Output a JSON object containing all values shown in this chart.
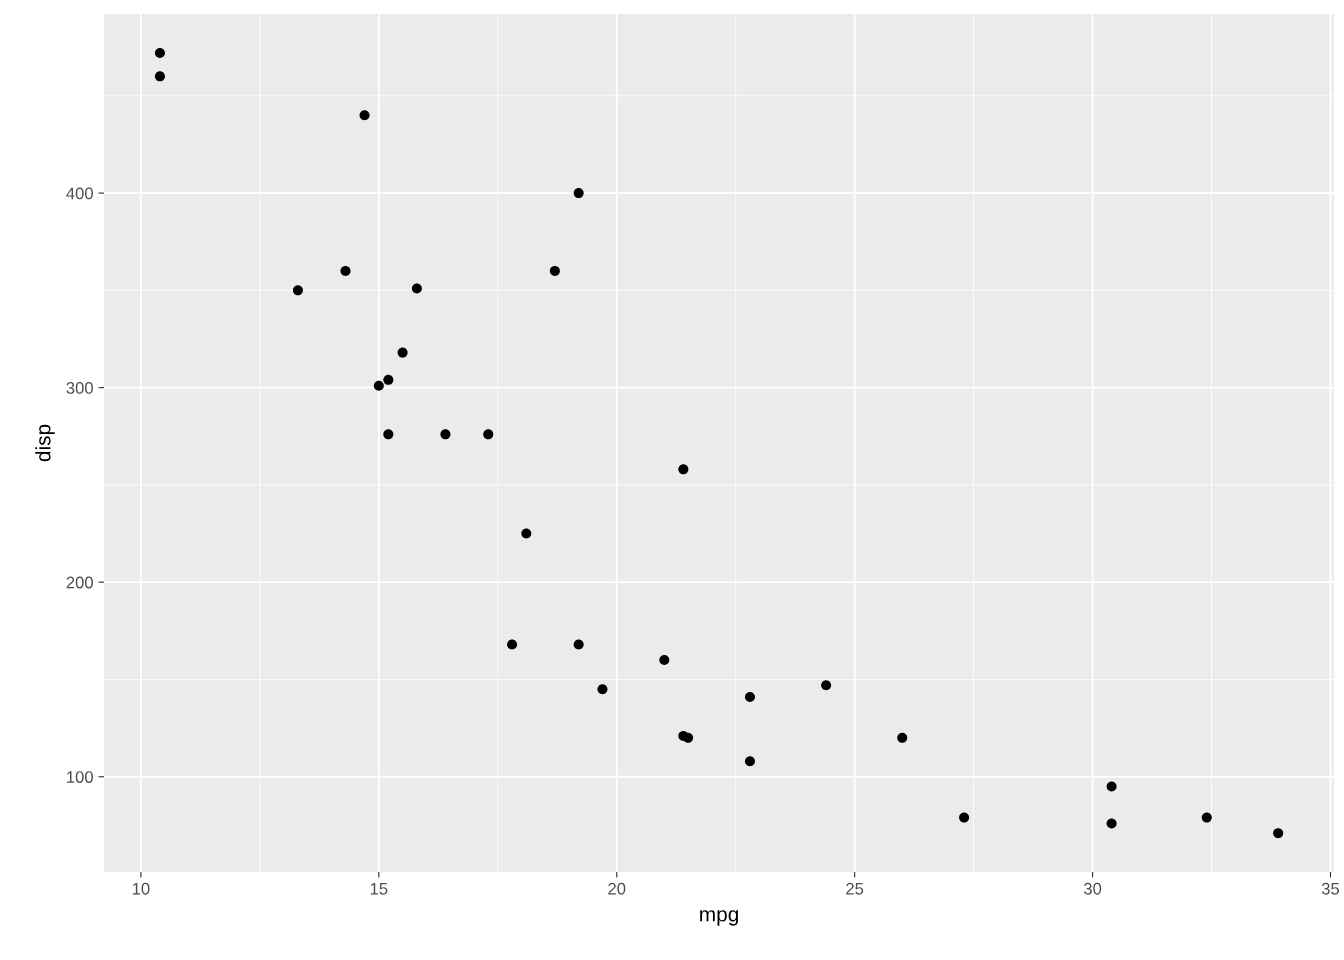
{
  "chart_data": {
    "type": "scatter",
    "xlabel": "mpg",
    "ylabel": "disp",
    "x": [
      21.0,
      22.8,
      21.4,
      18.7,
      18.1,
      14.3,
      24.4,
      22.8,
      19.2,
      17.8,
      16.4,
      17.3,
      15.2,
      10.4,
      10.4,
      14.7,
      32.4,
      30.4,
      33.9,
      21.5,
      15.5,
      15.2,
      13.3,
      19.2,
      27.3,
      26.0,
      30.4,
      15.8,
      19.7,
      15.0,
      21.4
    ],
    "series": [
      {
        "color": "#000000",
        "values": [
          160,
          108,
          258,
          360,
          225,
          360,
          147,
          141,
          168,
          168,
          276,
          276,
          276,
          472,
          460,
          440,
          79,
          76,
          71,
          120,
          318,
          304,
          350,
          400,
          79,
          120,
          95,
          351,
          145,
          301,
          121
        ]
      }
    ],
    "xlim": [
      9.225,
      35.075
    ],
    "ylim": [
      51.055,
      492.045
    ],
    "xticks": [
      10,
      15,
      20,
      25,
      30,
      35
    ],
    "yticks": [
      100,
      200,
      300,
      400
    ],
    "grid": true,
    "marker": "circle"
  }
}
